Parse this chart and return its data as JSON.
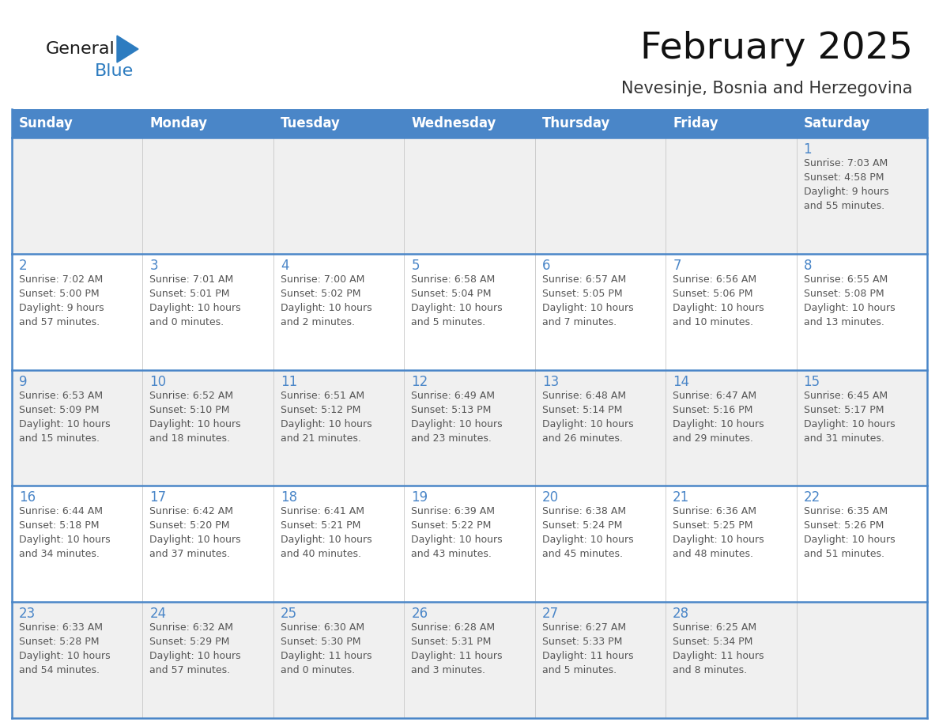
{
  "title": "February 2025",
  "subtitle": "Nevesinje, Bosnia and Herzegovina",
  "days_of_week": [
    "Sunday",
    "Monday",
    "Tuesday",
    "Wednesday",
    "Thursday",
    "Friday",
    "Saturday"
  ],
  "header_bg": "#4a86c8",
  "header_text": "#ffffff",
  "row_bg_gray": "#f0f0f0",
  "row_bg_white": "#ffffff",
  "cell_border_color": "#4a86c8",
  "day_number_color": "#4a86c8",
  "text_color": "#555555",
  "logo_general_color": "#1a1a1a",
  "logo_blue_color": "#2d7cc0",
  "logo_triangle_color": "#2d7cc0",
  "calendar_data": [
    [
      null,
      null,
      null,
      null,
      null,
      null,
      {
        "day": 1,
        "sunrise": "7:03 AM",
        "sunset": "4:58 PM",
        "daylight": "9 hours\nand 55 minutes."
      }
    ],
    [
      {
        "day": 2,
        "sunrise": "7:02 AM",
        "sunset": "5:00 PM",
        "daylight": "9 hours\nand 57 minutes."
      },
      {
        "day": 3,
        "sunrise": "7:01 AM",
        "sunset": "5:01 PM",
        "daylight": "10 hours\nand 0 minutes."
      },
      {
        "day": 4,
        "sunrise": "7:00 AM",
        "sunset": "5:02 PM",
        "daylight": "10 hours\nand 2 minutes."
      },
      {
        "day": 5,
        "sunrise": "6:58 AM",
        "sunset": "5:04 PM",
        "daylight": "10 hours\nand 5 minutes."
      },
      {
        "day": 6,
        "sunrise": "6:57 AM",
        "sunset": "5:05 PM",
        "daylight": "10 hours\nand 7 minutes."
      },
      {
        "day": 7,
        "sunrise": "6:56 AM",
        "sunset": "5:06 PM",
        "daylight": "10 hours\nand 10 minutes."
      },
      {
        "day": 8,
        "sunrise": "6:55 AM",
        "sunset": "5:08 PM",
        "daylight": "10 hours\nand 13 minutes."
      }
    ],
    [
      {
        "day": 9,
        "sunrise": "6:53 AM",
        "sunset": "5:09 PM",
        "daylight": "10 hours\nand 15 minutes."
      },
      {
        "day": 10,
        "sunrise": "6:52 AM",
        "sunset": "5:10 PM",
        "daylight": "10 hours\nand 18 minutes."
      },
      {
        "day": 11,
        "sunrise": "6:51 AM",
        "sunset": "5:12 PM",
        "daylight": "10 hours\nand 21 minutes."
      },
      {
        "day": 12,
        "sunrise": "6:49 AM",
        "sunset": "5:13 PM",
        "daylight": "10 hours\nand 23 minutes."
      },
      {
        "day": 13,
        "sunrise": "6:48 AM",
        "sunset": "5:14 PM",
        "daylight": "10 hours\nand 26 minutes."
      },
      {
        "day": 14,
        "sunrise": "6:47 AM",
        "sunset": "5:16 PM",
        "daylight": "10 hours\nand 29 minutes."
      },
      {
        "day": 15,
        "sunrise": "6:45 AM",
        "sunset": "5:17 PM",
        "daylight": "10 hours\nand 31 minutes."
      }
    ],
    [
      {
        "day": 16,
        "sunrise": "6:44 AM",
        "sunset": "5:18 PM",
        "daylight": "10 hours\nand 34 minutes."
      },
      {
        "day": 17,
        "sunrise": "6:42 AM",
        "sunset": "5:20 PM",
        "daylight": "10 hours\nand 37 minutes."
      },
      {
        "day": 18,
        "sunrise": "6:41 AM",
        "sunset": "5:21 PM",
        "daylight": "10 hours\nand 40 minutes."
      },
      {
        "day": 19,
        "sunrise": "6:39 AM",
        "sunset": "5:22 PM",
        "daylight": "10 hours\nand 43 minutes."
      },
      {
        "day": 20,
        "sunrise": "6:38 AM",
        "sunset": "5:24 PM",
        "daylight": "10 hours\nand 45 minutes."
      },
      {
        "day": 21,
        "sunrise": "6:36 AM",
        "sunset": "5:25 PM",
        "daylight": "10 hours\nand 48 minutes."
      },
      {
        "day": 22,
        "sunrise": "6:35 AM",
        "sunset": "5:26 PM",
        "daylight": "10 hours\nand 51 minutes."
      }
    ],
    [
      {
        "day": 23,
        "sunrise": "6:33 AM",
        "sunset": "5:28 PM",
        "daylight": "10 hours\nand 54 minutes."
      },
      {
        "day": 24,
        "sunrise": "6:32 AM",
        "sunset": "5:29 PM",
        "daylight": "10 hours\nand 57 minutes."
      },
      {
        "day": 25,
        "sunrise": "6:30 AM",
        "sunset": "5:30 PM",
        "daylight": "11 hours\nand 0 minutes."
      },
      {
        "day": 26,
        "sunrise": "6:28 AM",
        "sunset": "5:31 PM",
        "daylight": "11 hours\nand 3 minutes."
      },
      {
        "day": 27,
        "sunrise": "6:27 AM",
        "sunset": "5:33 PM",
        "daylight": "11 hours\nand 5 minutes."
      },
      {
        "day": 28,
        "sunrise": "6:25 AM",
        "sunset": "5:34 PM",
        "daylight": "11 hours\nand 8 minutes."
      },
      null
    ]
  ]
}
